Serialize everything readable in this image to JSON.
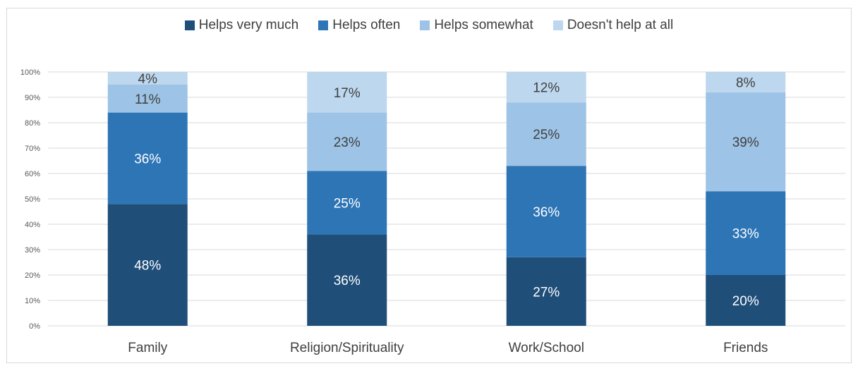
{
  "chart_data": {
    "type": "bar",
    "stacked": true,
    "percent": true,
    "categories": [
      "Family",
      "Religion/Spirituality",
      "Work/School",
      "Friends"
    ],
    "series": [
      {
        "name": "Helps very much",
        "values": [
          48,
          36,
          27,
          20
        ],
        "labels": [
          "48%",
          "36%",
          "27%",
          "20%"
        ],
        "color": "#1f4e79",
        "label_color": "#ffffff"
      },
      {
        "name": "Helps often",
        "values": [
          36,
          25,
          36,
          33
        ],
        "labels": [
          "36%",
          "25%",
          "36%",
          "33%"
        ],
        "color": "#2e75b6",
        "label_color": "#ffffff"
      },
      {
        "name": "Helps somewhat",
        "values": [
          11,
          23,
          25,
          39
        ],
        "labels": [
          "11%",
          "23%",
          "25%",
          "39%"
        ],
        "color": "#9dc3e6",
        "label_color": "#404040"
      },
      {
        "name": "Doesn't help at all",
        "values": [
          4,
          17,
          12,
          8
        ],
        "labels": [
          "4%",
          "17%",
          "12%",
          "8%"
        ],
        "color": "#bdd7ee",
        "label_color": "#404040"
      }
    ],
    "y_ticks": [
      "0%",
      "10%",
      "20%",
      "30%",
      "40%",
      "50%",
      "60%",
      "70%",
      "80%",
      "90%",
      "100%"
    ],
    "ylim": [
      0,
      100
    ],
    "grid": true,
    "legend_position": "top"
  }
}
